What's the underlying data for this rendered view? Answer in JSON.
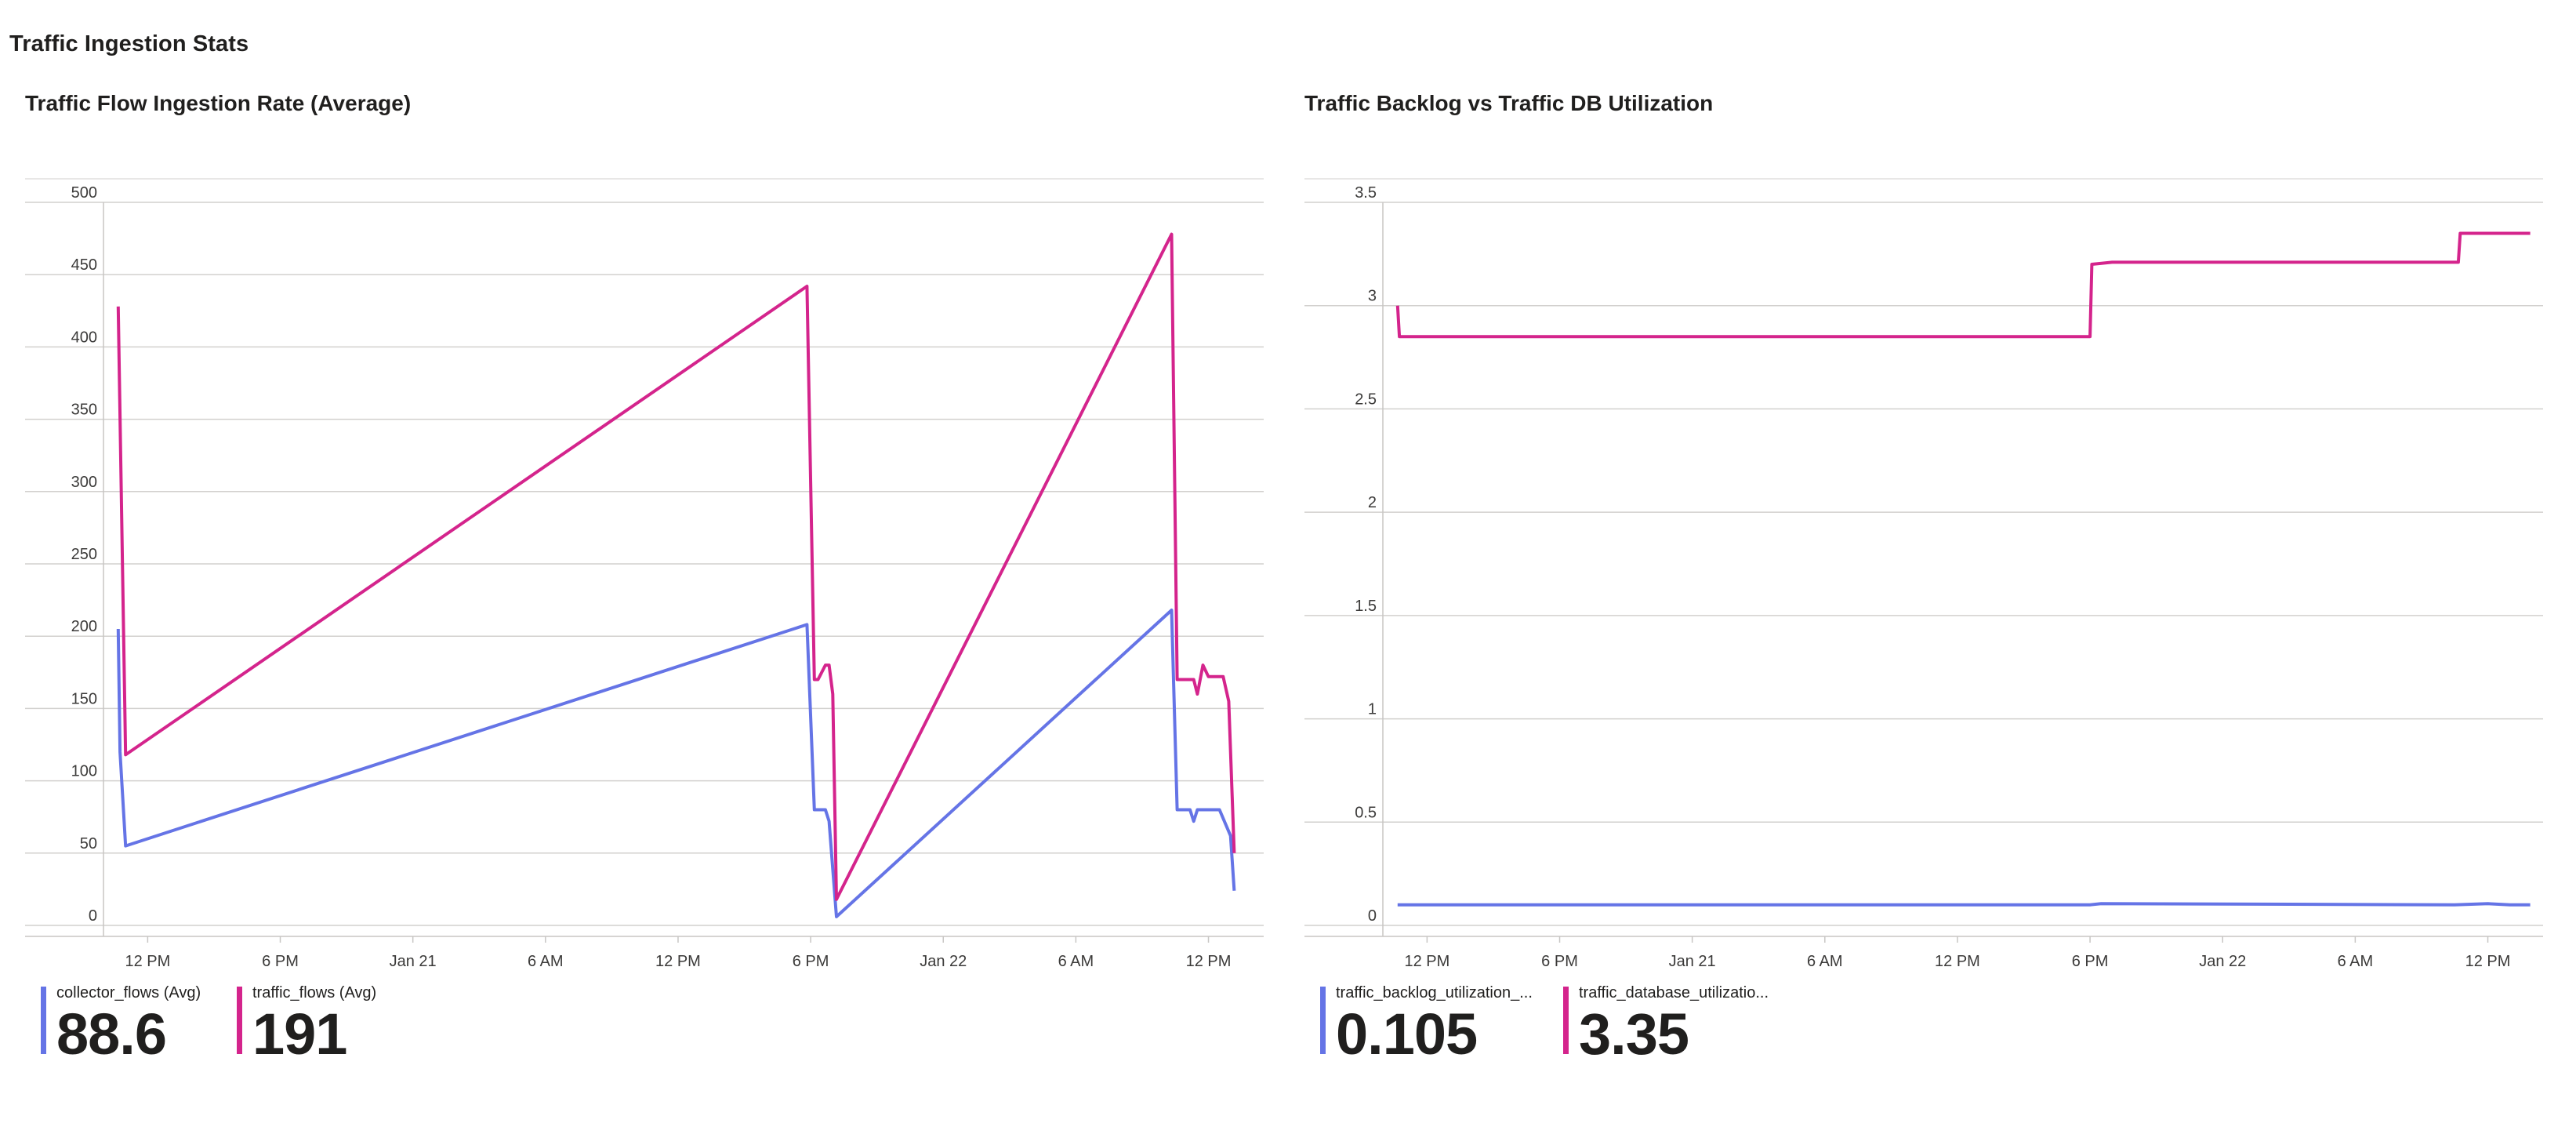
{
  "page": {
    "title": "Traffic Ingestion Stats"
  },
  "colors": {
    "blue": "#6574e6",
    "magenta": "#d4248c",
    "grid": "#d2d0ce",
    "axis": "#c8c6c4"
  },
  "chart_data": [
    {
      "type": "line",
      "title": "Traffic Flow Ingestion Rate (Average)",
      "xlabel": "",
      "ylabel": "",
      "xlim": [
        "2024-01-20T10:00",
        "2024-01-22T14:30"
      ],
      "ylim": [
        0,
        500
      ],
      "yticks": [
        "0",
        "50",
        "100",
        "150",
        "200",
        "250",
        "300",
        "350",
        "400",
        "450",
        "500"
      ],
      "xticks": [
        {
          "t": "2024-01-20T12:00",
          "label": "12 PM"
        },
        {
          "t": "2024-01-20T18:00",
          "label": "6 PM"
        },
        {
          "t": "2024-01-21T00:00",
          "label": "Jan 21"
        },
        {
          "t": "2024-01-21T06:00",
          "label": "6 AM"
        },
        {
          "t": "2024-01-21T12:00",
          "label": "12 PM"
        },
        {
          "t": "2024-01-21T18:00",
          "label": "6 PM"
        },
        {
          "t": "2024-01-22T00:00",
          "label": "Jan 22"
        },
        {
          "t": "2024-01-22T06:00",
          "label": "6 AM"
        },
        {
          "t": "2024-01-22T12:00",
          "label": "12 PM"
        }
      ],
      "grid": true,
      "legend_position": "bottom-left",
      "series": [
        {
          "name": "collector_flows (Avg)",
          "color": "#6574e6",
          "summary": "88.6",
          "points": [
            [
              "2024-01-20T10:40",
              205
            ],
            [
              "2024-01-20T10:45",
              120
            ],
            [
              "2024-01-20T11:00",
              55
            ],
            [
              "2024-01-21T17:50",
              208
            ],
            [
              "2024-01-21T18:10",
              80
            ],
            [
              "2024-01-21T18:40",
              80
            ],
            [
              "2024-01-21T18:50",
              72
            ],
            [
              "2024-01-21T19:10",
              6
            ],
            [
              "2024-01-22T10:20",
              218
            ],
            [
              "2024-01-22T10:35",
              80
            ],
            [
              "2024-01-22T11:10",
              80
            ],
            [
              "2024-01-22T11:20",
              72
            ],
            [
              "2024-01-22T11:30",
              80
            ],
            [
              "2024-01-22T12:30",
              80
            ],
            [
              "2024-01-22T13:00",
              62
            ],
            [
              "2024-01-22T13:10",
              24
            ]
          ]
        },
        {
          "name": "traffic_flows (Avg)",
          "color": "#d4248c",
          "summary": "191",
          "points": [
            [
              "2024-01-20T10:40",
              428
            ],
            [
              "2024-01-20T11:00",
              118
            ],
            [
              "2024-01-21T17:50",
              442
            ],
            [
              "2024-01-21T18:10",
              170
            ],
            [
              "2024-01-21T18:20",
              170
            ],
            [
              "2024-01-21T18:40",
              180
            ],
            [
              "2024-01-21T18:50",
              180
            ],
            [
              "2024-01-21T19:00",
              160
            ],
            [
              "2024-01-21T19:10",
              18
            ],
            [
              "2024-01-22T10:20",
              478
            ],
            [
              "2024-01-22T10:35",
              170
            ],
            [
              "2024-01-22T11:20",
              170
            ],
            [
              "2024-01-22T11:30",
              160
            ],
            [
              "2024-01-22T11:45",
              180
            ],
            [
              "2024-01-22T12:00",
              172
            ],
            [
              "2024-01-22T12:40",
              172
            ],
            [
              "2024-01-22T12:55",
              155
            ],
            [
              "2024-01-22T13:10",
              50
            ]
          ]
        }
      ]
    },
    {
      "type": "line",
      "title": "Traffic Backlog vs Traffic DB Utilization",
      "xlabel": "",
      "ylabel": "",
      "xlim": [
        "2024-01-20T10:00",
        "2024-01-22T14:30"
      ],
      "ylim": [
        0,
        3.5
      ],
      "yticks": [
        "0",
        "0.5",
        "1",
        "1.5",
        "2",
        "2.5",
        "3",
        "3.5"
      ],
      "xticks": [
        {
          "t": "2024-01-20T12:00",
          "label": "12 PM"
        },
        {
          "t": "2024-01-20T18:00",
          "label": "6 PM"
        },
        {
          "t": "2024-01-21T00:00",
          "label": "Jan 21"
        },
        {
          "t": "2024-01-21T06:00",
          "label": "6 AM"
        },
        {
          "t": "2024-01-21T12:00",
          "label": "12 PM"
        },
        {
          "t": "2024-01-21T18:00",
          "label": "6 PM"
        },
        {
          "t": "2024-01-22T00:00",
          "label": "Jan 22"
        },
        {
          "t": "2024-01-22T06:00",
          "label": "6 AM"
        },
        {
          "t": "2024-01-22T12:00",
          "label": "12 PM"
        }
      ],
      "grid": true,
      "legend_position": "bottom-left",
      "series": [
        {
          "name": "traffic_backlog_utilization_...",
          "color": "#6574e6",
          "summary": "0.105",
          "points": [
            [
              "2024-01-20T10:40",
              0.1
            ],
            [
              "2024-01-21T18:00",
              0.1
            ],
            [
              "2024-01-21T18:30",
              0.105
            ],
            [
              "2024-01-22T10:30",
              0.1
            ],
            [
              "2024-01-22T12:00",
              0.105
            ],
            [
              "2024-01-22T13:00",
              0.1
            ],
            [
              "2024-01-22T13:55",
              0.1
            ]
          ]
        },
        {
          "name": "traffic_database_utilizatio...",
          "color": "#d4248c",
          "summary": "3.35",
          "points": [
            [
              "2024-01-20T10:40",
              3.0
            ],
            [
              "2024-01-20T10:45",
              2.85
            ],
            [
              "2024-01-21T18:00",
              2.85
            ],
            [
              "2024-01-21T18:05",
              3.2
            ],
            [
              "2024-01-21T19:00",
              3.21
            ],
            [
              "2024-01-22T10:00",
              3.21
            ],
            [
              "2024-01-22T10:40",
              3.21
            ],
            [
              "2024-01-22T10:45",
              3.35
            ],
            [
              "2024-01-22T13:55",
              3.35
            ]
          ]
        }
      ]
    }
  ]
}
